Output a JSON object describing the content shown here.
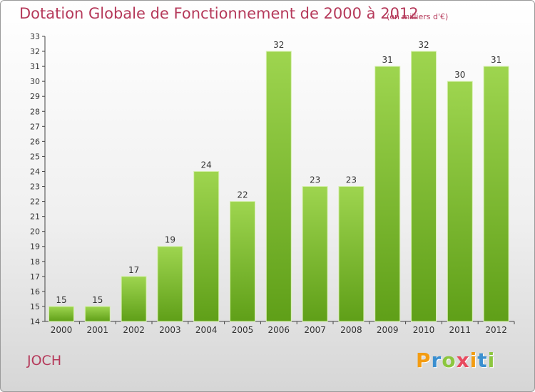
{
  "header": {
    "title": "Dotation Globale de Fonctionnement de 2000 à 2012",
    "unit": "(en milliers d'€)"
  },
  "footer": {
    "commune": "JOCH",
    "logo_text": "Proxiti"
  },
  "colors": {
    "title": "#b5395a",
    "bar_top": "#9ed54f",
    "bar_bottom": "#5f9f18"
  },
  "chart_data": {
    "type": "bar",
    "categories": [
      "2000",
      "2001",
      "2002",
      "2003",
      "2004",
      "2005",
      "2006",
      "2007",
      "2008",
      "2009",
      "2010",
      "2011",
      "2012"
    ],
    "values": [
      15,
      15,
      17,
      19,
      24,
      22,
      32,
      23,
      23,
      31,
      32,
      30,
      31
    ],
    "ylim": [
      14,
      33
    ],
    "title": "Dotation Globale de Fonctionnement de 2000 à 2012",
    "xlabel": "",
    "ylabel": "",
    "grid": false
  }
}
